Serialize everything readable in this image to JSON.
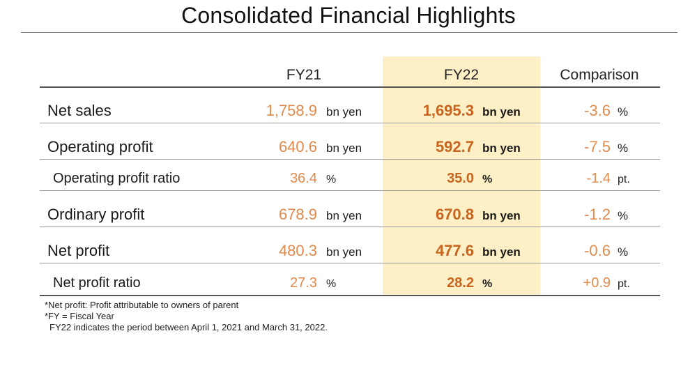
{
  "title": "Consolidated Financial Highlights",
  "headers": {
    "fy21": "FY21",
    "fy22": "FY22",
    "comparison": "Comparison"
  },
  "rows": [
    {
      "label": "Net sales",
      "fy21_value": "1,758.9",
      "fy21_unit": "bn yen",
      "fy22_value": "1,695.3",
      "fy22_unit": "bn yen",
      "cmp_value": "-3.6",
      "cmp_unit": "%"
    },
    {
      "label": "Operating profit",
      "fy21_value": "640.6",
      "fy21_unit": "bn yen",
      "fy22_value": "592.7",
      "fy22_unit": "bn yen",
      "cmp_value": "-7.5",
      "cmp_unit": "%"
    },
    {
      "label": "Operating profit ratio",
      "fy21_value": "36.4",
      "fy21_unit": "%",
      "fy22_value": "35.0",
      "fy22_unit": "%",
      "cmp_value": "-1.4",
      "cmp_unit": "pt."
    },
    {
      "label": "Ordinary profit",
      "fy21_value": "678.9",
      "fy21_unit": "bn yen",
      "fy22_value": "670.8",
      "fy22_unit": "bn yen",
      "cmp_value": "-1.2",
      "cmp_unit": "%"
    },
    {
      "label": "Net profit",
      "fy21_value": "480.3",
      "fy21_unit": "bn yen",
      "fy22_value": "477.6",
      "fy22_unit": "bn yen",
      "cmp_value": "-0.6",
      "cmp_unit": "%"
    },
    {
      "label": "Net profit ratio",
      "fy21_value": "27.3",
      "fy21_unit": "%",
      "fy22_value": "28.2",
      "fy22_unit": "%",
      "cmp_value": "+0.9",
      "cmp_unit": "pt."
    }
  ],
  "notes": [
    "*Net profit: Profit attributable to owners of parent",
    "*FY = Fiscal Year",
    "FY22 indicates the period between April 1, 2021 and March 31, 2022."
  ],
  "colors": {
    "fy22_highlight": "#fdf0c6",
    "fy21_value": "#e08a4c",
    "fy22_value": "#c8641e"
  }
}
